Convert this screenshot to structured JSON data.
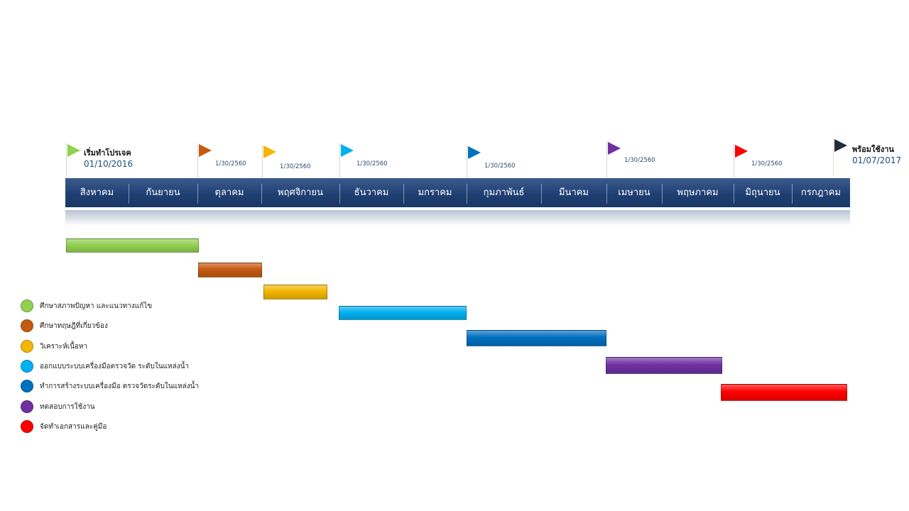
{
  "milestones": {
    "start": {
      "title": "เริ่มทำโปรเจค",
      "date": "01/10/2016",
      "color": "#92d050"
    },
    "end": {
      "title": "พร้อมใช้งาน",
      "date": "01/07/2017",
      "color": "#1f2d3d"
    }
  },
  "flags": [
    {
      "date": "1/30/2560",
      "color": "#c55a11"
    },
    {
      "date": "1/30/2560",
      "color": "#f2b600"
    },
    {
      "date": "1/30/2560",
      "color": "#00b0f0"
    },
    {
      "date": "1/30/2560",
      "color": "#0070c0"
    },
    {
      "date": "1/30/2560",
      "color": "#7030a0"
    },
    {
      "date": "1/30/2560",
      "color": "#ff0000"
    }
  ],
  "months": [
    "สิงหาคม",
    "กันยายน",
    "ตุลาคม",
    "พฤศจิกายน",
    "ธันวาคม",
    "มกราคม",
    "กุมภาพันธ์",
    "มีนาคม",
    "เมษายน",
    "พฤษภาคม",
    "มิถุนายน",
    "กรกฎาคม"
  ],
  "tasks": [
    {
      "label": "ศึกษาสภาพปัญหา และแนวทางแก้ไข",
      "color": "#92d050"
    },
    {
      "label": "ศึกษาทฤษฎีที่เกี่ยวข้อง",
      "color": "#c55a11"
    },
    {
      "label": "วิเคราะห์เนื้อหา",
      "color": "#f2b600"
    },
    {
      "label": "ออกแบบระบบเครื่องมือตรวจวัด ระดับในแหล่งน้ำ",
      "color": "#00b0f0"
    },
    {
      "label": "ทำการสร้างระบบเครื่องมือ ตรวจวัดระดับในแหล่งน้ำ",
      "color": "#0070c0"
    },
    {
      "label": "ทดสอบการใช้งาน",
      "color": "#7030a0"
    },
    {
      "label": "จัดทำเอกสารและคู่มือ",
      "color": "#ff0000"
    }
  ]
}
